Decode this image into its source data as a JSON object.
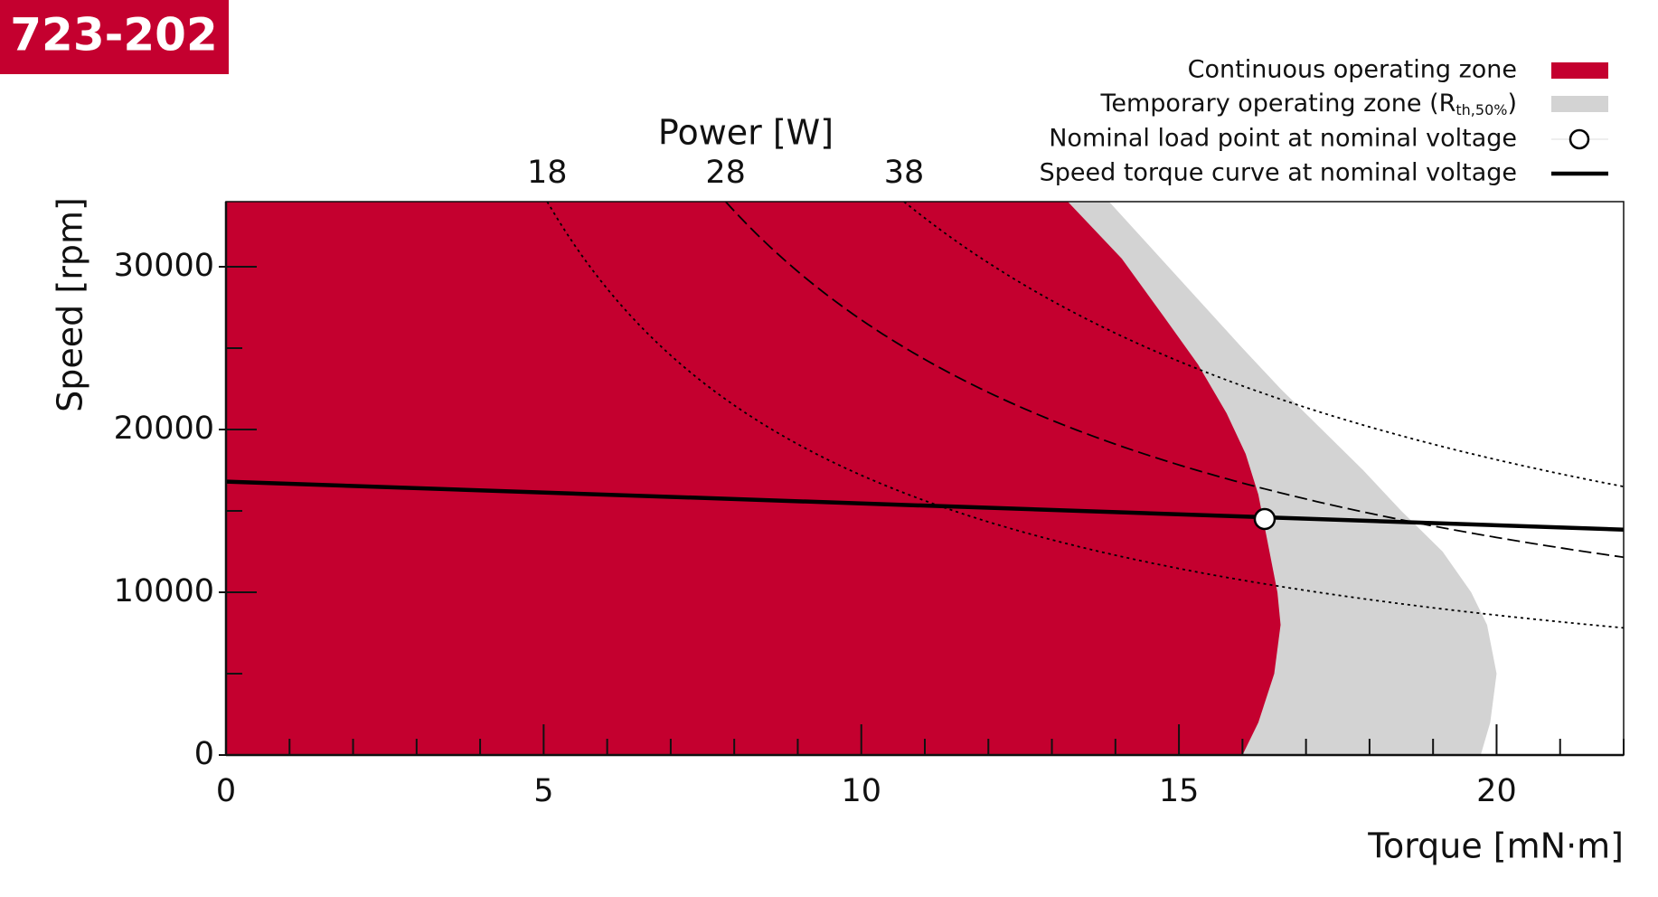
{
  "chart_data": {
    "type": "operating-range",
    "title": "723-202",
    "x_label": "Torque [mN·m]",
    "y_label": "Speed [rpm]",
    "top_axis_label": "Power [W]",
    "xlim": [
      0,
      22
    ],
    "ylim": [
      0,
      34000
    ],
    "xticks": [
      0,
      5,
      10,
      15,
      20
    ],
    "xticks_minor": [
      1,
      2,
      3,
      4,
      6,
      7,
      8,
      9,
      11,
      12,
      13,
      14,
      16,
      17,
      18,
      19,
      21,
      22
    ],
    "yticks": [
      0,
      10000,
      20000,
      30000
    ],
    "yticks_minor": [
      5000,
      15000,
      25000
    ],
    "power_curves": {
      "values": [
        18,
        28,
        38
      ],
      "color": "#000000"
    },
    "series": [
      {
        "name": "Continuous operating zone",
        "kind": "area",
        "color": "#c4002f",
        "x": [
          0,
          16.0,
          16.25,
          16.5,
          16.6,
          16.55,
          16.4,
          16.25,
          16.05,
          15.75,
          15.3,
          14.75,
          14.1,
          13.25,
          0
        ],
        "y": [
          0,
          0,
          2000,
          5000,
          8000,
          10000,
          13000,
          16000,
          18500,
          21000,
          24000,
          27000,
          30500,
          34000,
          34000
        ]
      },
      {
        "name_parts": [
          "Temporary operating zone (R",
          "th,50%",
          ")"
        ],
        "kind": "area",
        "color": "#d3d3d3",
        "x": [
          0,
          19.75,
          19.9,
          20.0,
          19.85,
          19.6,
          19.15,
          18.5,
          17.9,
          17.25,
          16.6,
          16.0,
          15.3,
          14.6,
          13.9,
          0
        ],
        "y": [
          0,
          0,
          2000,
          5000,
          8000,
          10000,
          12500,
          15000,
          17500,
          20000,
          22500,
          25000,
          28000,
          31000,
          34000,
          34000
        ]
      },
      {
        "name": "Nominal load point at nominal voltage",
        "kind": "point",
        "color": "#000000",
        "x": [
          16.35
        ],
        "y": [
          14500
        ]
      },
      {
        "name": "Speed torque curve at nominal voltage",
        "kind": "line",
        "color": "#000000",
        "x": [
          0,
          22
        ],
        "y": [
          16800,
          13850
        ]
      }
    ]
  }
}
